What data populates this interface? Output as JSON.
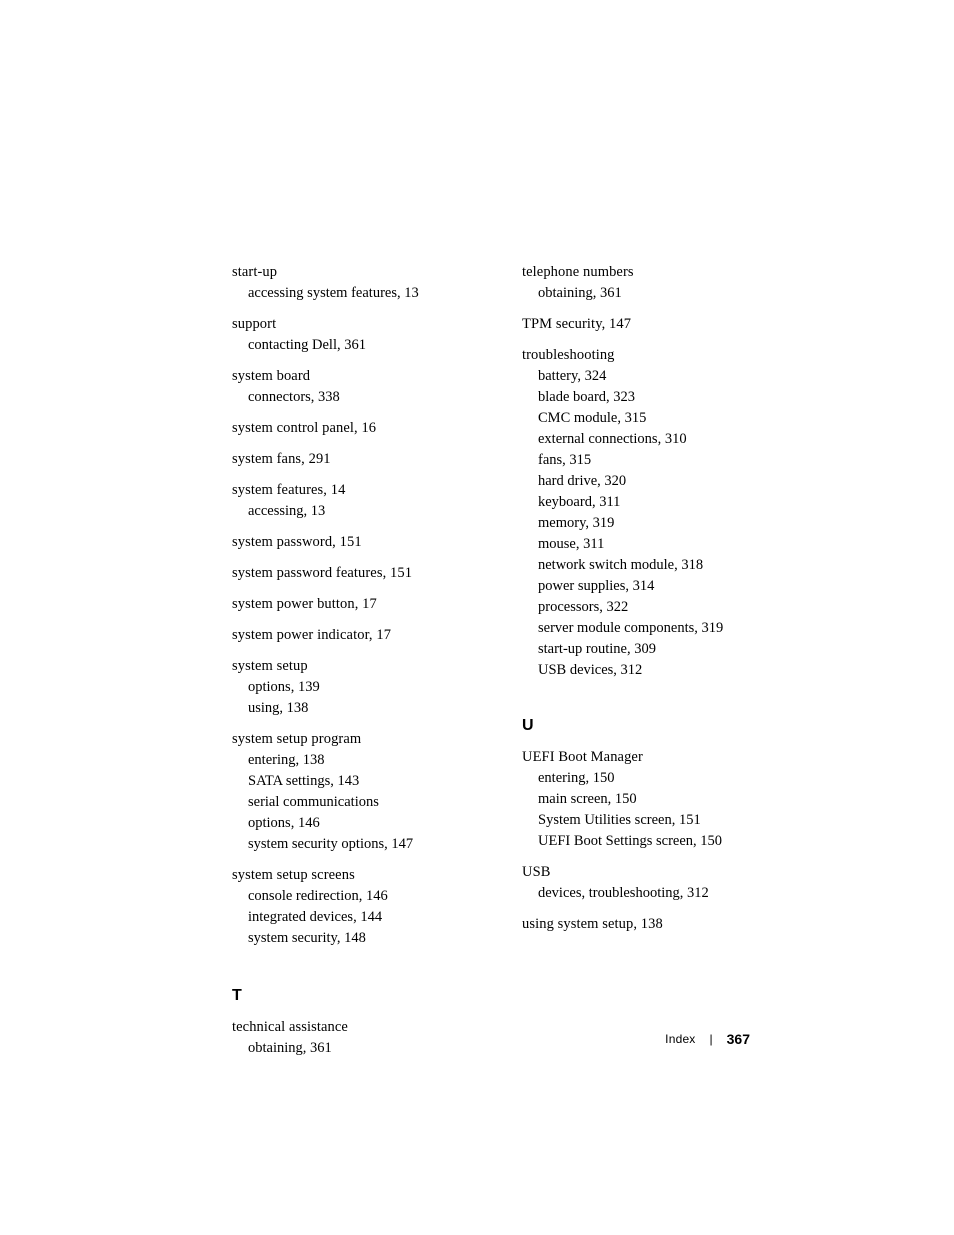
{
  "left": {
    "entries": [
      {
        "head": "start-up",
        "subs": [
          "accessing system features, 13"
        ]
      },
      {
        "head": "support",
        "subs": [
          "contacting Dell, 361"
        ]
      },
      {
        "head": "system board",
        "subs": [
          "connectors, 338"
        ]
      },
      {
        "head": "system control panel, 16",
        "subs": []
      },
      {
        "head": "system fans, 291",
        "subs": []
      },
      {
        "head": "system features, 14",
        "subs": [
          "accessing, 13"
        ]
      },
      {
        "head": "system password, 151",
        "subs": []
      },
      {
        "head": "system password features, 151",
        "subs": []
      },
      {
        "head": "system power button, 17",
        "subs": []
      },
      {
        "head": "system power indicator, 17",
        "subs": []
      },
      {
        "head": "system setup",
        "subs": [
          "options, 139",
          "using, 138"
        ]
      },
      {
        "head": "system setup program",
        "subs": [
          "entering, 138",
          "SATA settings, 143"
        ],
        "wraps": [
          [
            "serial communications",
            "options, 146"
          ]
        ],
        "subs2": [
          "system security options, 147"
        ]
      },
      {
        "head": "system setup screens",
        "subs": [
          "console redirection, 146",
          "integrated devices, 144",
          "system security, 148"
        ]
      }
    ],
    "section_T": {
      "letter": "T",
      "entries": [
        {
          "head": "technical assistance",
          "subs": [
            "obtaining, 361"
          ]
        }
      ]
    }
  },
  "right": {
    "entries": [
      {
        "head": "telephone numbers",
        "subs": [
          "obtaining, 361"
        ]
      },
      {
        "head": "TPM security, 147",
        "subs": []
      },
      {
        "head": "troubleshooting",
        "subs": [
          "battery, 324",
          "blade board, 323",
          "CMC module, 315",
          "external connections, 310",
          "fans, 315",
          "hard drive, 320",
          "keyboard, 311",
          "memory, 319",
          "mouse, 311",
          "network switch module, 318",
          "power supplies, 314",
          "processors, 322",
          "server module components, 319",
          "start-up routine, 309",
          "USB devices, 312"
        ]
      }
    ],
    "section_U": {
      "letter": "U",
      "entries": [
        {
          "head": "UEFI Boot Manager",
          "subs": [
            "entering, 150",
            "main screen, 150",
            "System Utilities screen, 151",
            "UEFI Boot Settings screen, 150"
          ]
        },
        {
          "head": "USB",
          "subs": [
            "devices, troubleshooting, 312"
          ]
        },
        {
          "head": "using system setup, 138",
          "subs": []
        }
      ]
    }
  },
  "footer": {
    "label": "Index",
    "sep": "|",
    "page": "367"
  }
}
